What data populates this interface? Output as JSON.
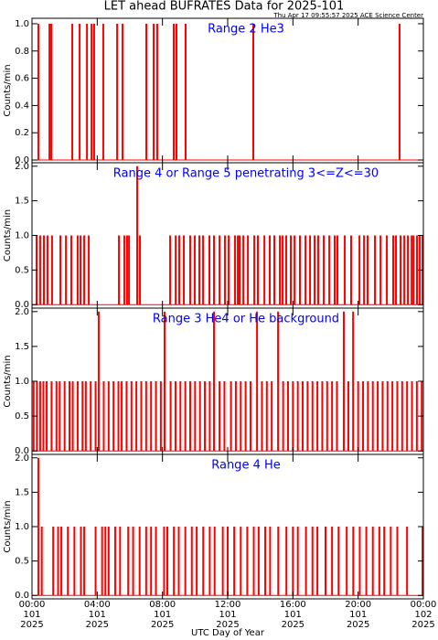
{
  "title": "LET ahead BUFRATES Data for 2025-101",
  "timestamp": "Thu Apr 17 09:55:57 2025 ACE Science Center",
  "chart_data": [
    {
      "type": "spike",
      "title": "Range 2 He3",
      "y_label": "Counts/min",
      "color": "#ff0000",
      "xlim": [
        0,
        24
      ],
      "xticks": [
        0,
        4,
        8,
        12,
        16,
        20,
        24
      ],
      "ylim": [
        -0.02,
        1.04
      ],
      "yticks": [
        {
          "value": 0,
          "label": "0.0"
        },
        {
          "value": 0.2,
          "label": "0.2"
        },
        {
          "value": 0.4,
          "label": "0.4"
        },
        {
          "value": 0.6,
          "label": "0.6"
        },
        {
          "value": 0.8,
          "label": "0.8"
        },
        {
          "value": 1,
          "label": "1.0"
        }
      ],
      "x": [
        0.39,
        1.07,
        1.18,
        2.47,
        2.92,
        3.37,
        3.65,
        3.81,
        4.37,
        5.22,
        5.55,
        7.01,
        7.46,
        7.68,
        8.69,
        8.86,
        9.42,
        13.57,
        22.54
      ],
      "values": [
        1,
        1,
        1,
        1,
        1,
        1,
        1,
        1,
        1,
        1,
        1,
        1,
        1,
        1,
        1,
        1,
        1,
        1,
        1
      ]
    },
    {
      "type": "spike",
      "title": "Range 4 or Range 5 penetrating 3<=Z<=30",
      "y_label": "Counts/min",
      "color": "#ff0000",
      "xlim": [
        0,
        24
      ],
      "xticks": [
        0,
        4,
        8,
        12,
        16,
        20,
        24
      ],
      "ylim": [
        -0.05,
        2.05
      ],
      "yticks": [
        {
          "value": 0,
          "label": "0.0"
        },
        {
          "value": 0.5,
          "label": "0.5"
        },
        {
          "value": 1,
          "label": "1.0"
        },
        {
          "value": 1.5,
          "label": "1.5"
        },
        {
          "value": 2,
          "label": "2.0"
        }
      ],
      "x": [
        0.28,
        0.5,
        0.73,
        0.95,
        1.23,
        1.74,
        2.08,
        2.41,
        2.8,
        2.97,
        3.2,
        3.48,
        5.33,
        5.66,
        5.83,
        5.95,
        6.45,
        6.62,
        8.47,
        8.81,
        9.03,
        9.31,
        9.7,
        9.98,
        10.26,
        10.49,
        10.88,
        11.16,
        11.5,
        11.83,
        12.06,
        12.45,
        12.62,
        12.73,
        12.96,
        13.24,
        13.63,
        13.85,
        14.25,
        14.58,
        14.86,
        15.2,
        15.37,
        15.59,
        15.87,
        16.1,
        16.43,
        16.77,
        17.05,
        17.33,
        17.55,
        17.89,
        18.23,
        18.56,
        18.73,
        19.18,
        19.57,
        20.08,
        20.36,
        20.58,
        21.03,
        21.37,
        21.76,
        22.15,
        22.32,
        22.6,
        22.83,
        23.05,
        23.28,
        23.39,
        23.61,
        23.78,
        23.95
      ],
      "values": [
        1,
        1,
        1,
        1,
        1,
        1,
        1,
        1,
        1,
        1,
        1,
        1,
        1,
        1,
        1,
        1,
        2,
        1,
        1,
        1,
        1,
        1,
        1,
        1,
        1,
        1,
        1,
        1,
        1,
        1,
        1,
        1,
        1,
        1,
        1,
        1,
        1,
        1,
        1,
        1,
        1,
        1,
        1,
        1,
        1,
        1,
        1,
        1,
        1,
        1,
        1,
        1,
        1,
        1,
        1,
        1,
        1,
        1,
        1,
        1,
        1,
        1,
        1,
        1,
        1,
        1,
        1,
        1,
        1,
        1,
        1,
        1,
        1
      ]
    },
    {
      "type": "spike",
      "title": "Range 3 He4 or He background",
      "y_label": "Counts/min",
      "color": "#ff0000",
      "xlim": [
        0,
        24
      ],
      "xticks": [
        0,
        4,
        8,
        12,
        16,
        20,
        24
      ],
      "ylim": [
        -0.05,
        2.05
      ],
      "yticks": [
        {
          "value": 0,
          "label": "0.0"
        },
        {
          "value": 0.5,
          "label": "0.5"
        },
        {
          "value": 1,
          "label": "1.0"
        },
        {
          "value": 1.5,
          "label": "1.5"
        },
        {
          "value": 2,
          "label": "2.0"
        }
      ],
      "x": [
        0.1,
        0.3,
        0.5,
        0.7,
        0.9,
        1.2,
        1.5,
        1.7,
        2.0,
        2.3,
        2.5,
        2.8,
        3.1,
        3.3,
        3.6,
        3.9,
        4.09,
        4.4,
        4.7,
        5.0,
        5.3,
        5.5,
        5.8,
        6.1,
        6.4,
        6.7,
        7.0,
        7.3,
        7.6,
        7.9,
        8.13,
        8.5,
        8.8,
        9.1,
        9.4,
        9.7,
        10.0,
        10.3,
        10.6,
        10.9,
        11.16,
        11.5,
        11.8,
        12.2,
        12.5,
        12.8,
        13.1,
        13.4,
        13.8,
        14.1,
        14.4,
        14.7,
        15.09,
        15.4,
        15.7,
        16.0,
        16.3,
        16.6,
        16.9,
        17.2,
        17.5,
        17.8,
        18.1,
        18.4,
        18.7,
        19.12,
        19.4,
        19.69,
        20.0,
        20.3,
        20.6,
        20.9,
        21.2,
        21.5,
        21.8,
        22.1,
        22.4,
        22.7,
        23.0,
        23.3,
        23.6,
        23.9
      ],
      "values": [
        1,
        1,
        1,
        1,
        1,
        1,
        1,
        1,
        1,
        1,
        1,
        1,
        1,
        1,
        1,
        1,
        2,
        1,
        1,
        1,
        1,
        1,
        1,
        1,
        1,
        1,
        1,
        1,
        1,
        1,
        2,
        1,
        1,
        1,
        1,
        1,
        1,
        1,
        1,
        1,
        2,
        1,
        1,
        1,
        1,
        1,
        1,
        1,
        2,
        1,
        1,
        1,
        2,
        1,
        1,
        1,
        1,
        1,
        1,
        1,
        1,
        1,
        1,
        1,
        1,
        2,
        1,
        2,
        1,
        1,
        1,
        1,
        1,
        1,
        1,
        1,
        1,
        1,
        1,
        1,
        1,
        1
      ]
    },
    {
      "type": "spike",
      "title": "Range 4 He",
      "y_label": "Counts/min",
      "x_label": "UTC Day of Year",
      "color": "#ff0000",
      "xlim": [
        0,
        24
      ],
      "xticks": [
        {
          "value": 0,
          "label": "00:00"
        },
        {
          "value": 4,
          "label": "04:00"
        },
        {
          "value": 8,
          "label": "08:00"
        },
        {
          "value": 12,
          "label": "12:00"
        },
        {
          "value": 16,
          "label": "16:00"
        },
        {
          "value": 20,
          "label": "20:00"
        },
        {
          "value": 24,
          "label": "00:00"
        }
      ],
      "xtick_day": [
        "101",
        "101",
        "101",
        "101",
        "101",
        "101",
        "102"
      ],
      "xtick_year": [
        "2025",
        "2025",
        "2025",
        "2025",
        "2025",
        "2025",
        "2025"
      ],
      "ylim": [
        -0.05,
        2.05
      ],
      "yticks": [
        {
          "value": 0,
          "label": "0.0"
        },
        {
          "value": 0.5,
          "label": "0.5"
        },
        {
          "value": 1,
          "label": "1.0"
        },
        {
          "value": 1.5,
          "label": "1.5"
        },
        {
          "value": 2,
          "label": "2.0"
        }
      ],
      "x": [
        0.39,
        0.6,
        1.3,
        1.6,
        1.8,
        2.2,
        2.6,
        3.0,
        3.2,
        3.9,
        4.3,
        4.5,
        4.7,
        5.1,
        5.4,
        5.9,
        6.2,
        6.6,
        7.0,
        7.3,
        7.6,
        8.1,
        8.3,
        8.7,
        9.0,
        9.4,
        9.8,
        10.1,
        10.5,
        10.9,
        11.2,
        11.7,
        12.0,
        12.4,
        12.8,
        13.2,
        13.6,
        13.9,
        14.3,
        14.6,
        15.1,
        15.6,
        16.0,
        16.3,
        16.8,
        17.2,
        17.5,
        18.0,
        18.4,
        18.8,
        19.3,
        19.7,
        20.1,
        20.5,
        20.9,
        21.3,
        21.6,
        22.0,
        22.4,
        23.0,
        23.95
      ],
      "values": [
        2,
        1,
        1,
        1,
        1,
        1,
        1,
        1,
        1,
        1,
        1,
        1,
        1,
        1,
        1,
        1,
        1,
        1,
        1,
        1,
        1,
        1,
        1,
        1,
        1,
        1,
        1,
        1,
        1,
        1,
        1,
        1,
        1,
        1,
        1,
        1,
        1,
        1,
        1,
        1,
        1,
        1,
        1,
        1,
        1,
        1,
        1,
        1,
        1,
        1,
        1,
        1,
        1,
        1,
        1,
        1,
        1,
        1,
        1,
        1,
        1
      ]
    }
  ]
}
